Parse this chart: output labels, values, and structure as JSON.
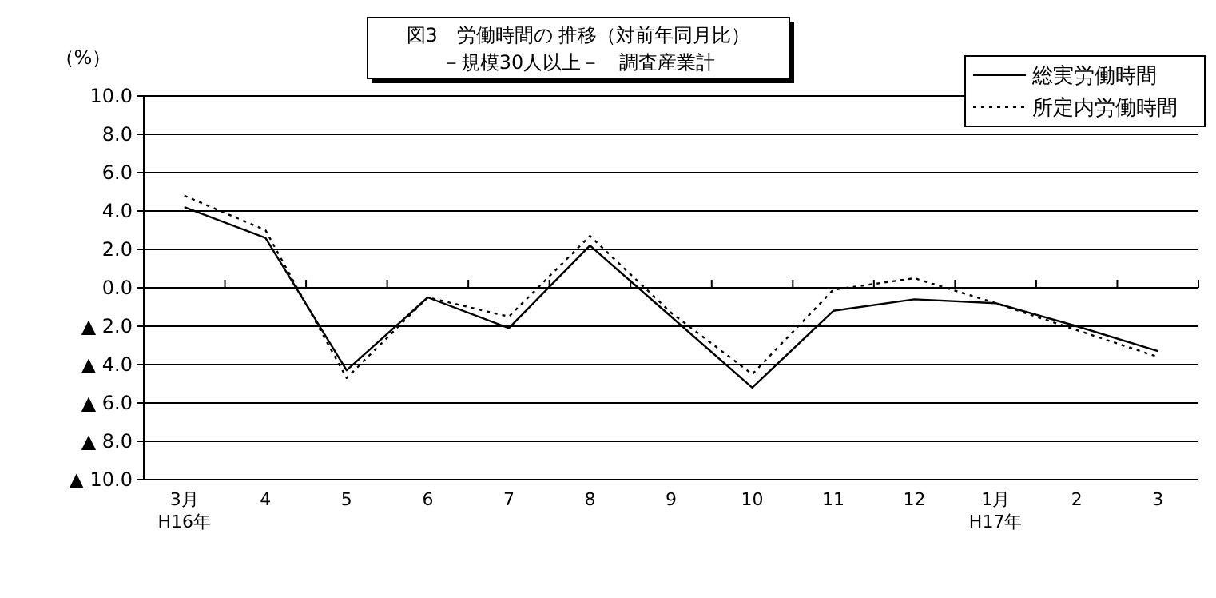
{
  "chart_data": {
    "type": "line",
    "title": "図3　労働時間の 推移（対前年同月比）",
    "subtitle": "－規模30人以上－　調査産業計",
    "ylabel": "（%）",
    "categories": [
      "3月\nH16年",
      "4",
      "5",
      "6",
      "7",
      "8",
      "9",
      "10",
      "11",
      "12",
      "1月\nH17年",
      "2",
      "3"
    ],
    "series": [
      {
        "name": "総実労働時間",
        "color": "#000000",
        "line_style": "solid",
        "values": [
          4.2,
          2.6,
          -4.3,
          -0.5,
          -2.1,
          2.2,
          -1.5,
          -5.2,
          -1.2,
          -0.6,
          -0.8,
          -2.0,
          -3.3
        ]
      },
      {
        "name": "所定内労働時間",
        "color": "#000000",
        "line_style": "dotted",
        "values": [
          4.8,
          3.0,
          -4.7,
          -0.5,
          -1.5,
          2.7,
          -1.3,
          -4.5,
          -0.1,
          0.5,
          -0.8,
          -2.2,
          -3.6
        ]
      }
    ],
    "ylim": [
      -10,
      10
    ],
    "yticks": [
      {
        "value": 10,
        "label": "10.0"
      },
      {
        "value": 8,
        "label": "8.0"
      },
      {
        "value": 6,
        "label": "6.0"
      },
      {
        "value": 4,
        "label": "4.0"
      },
      {
        "value": 2,
        "label": "2.0"
      },
      {
        "value": 0,
        "label": "0.0"
      },
      {
        "value": -2,
        "label": "▲ 2.0"
      },
      {
        "value": -4,
        "label": "▲ 4.0"
      },
      {
        "value": -6,
        "label": "▲ 6.0"
      },
      {
        "value": -8,
        "label": "▲ 8.0"
      },
      {
        "value": -10,
        "label": "▲ 10.0"
      }
    ],
    "grid": "y",
    "legend": "top right",
    "marker": "none"
  }
}
